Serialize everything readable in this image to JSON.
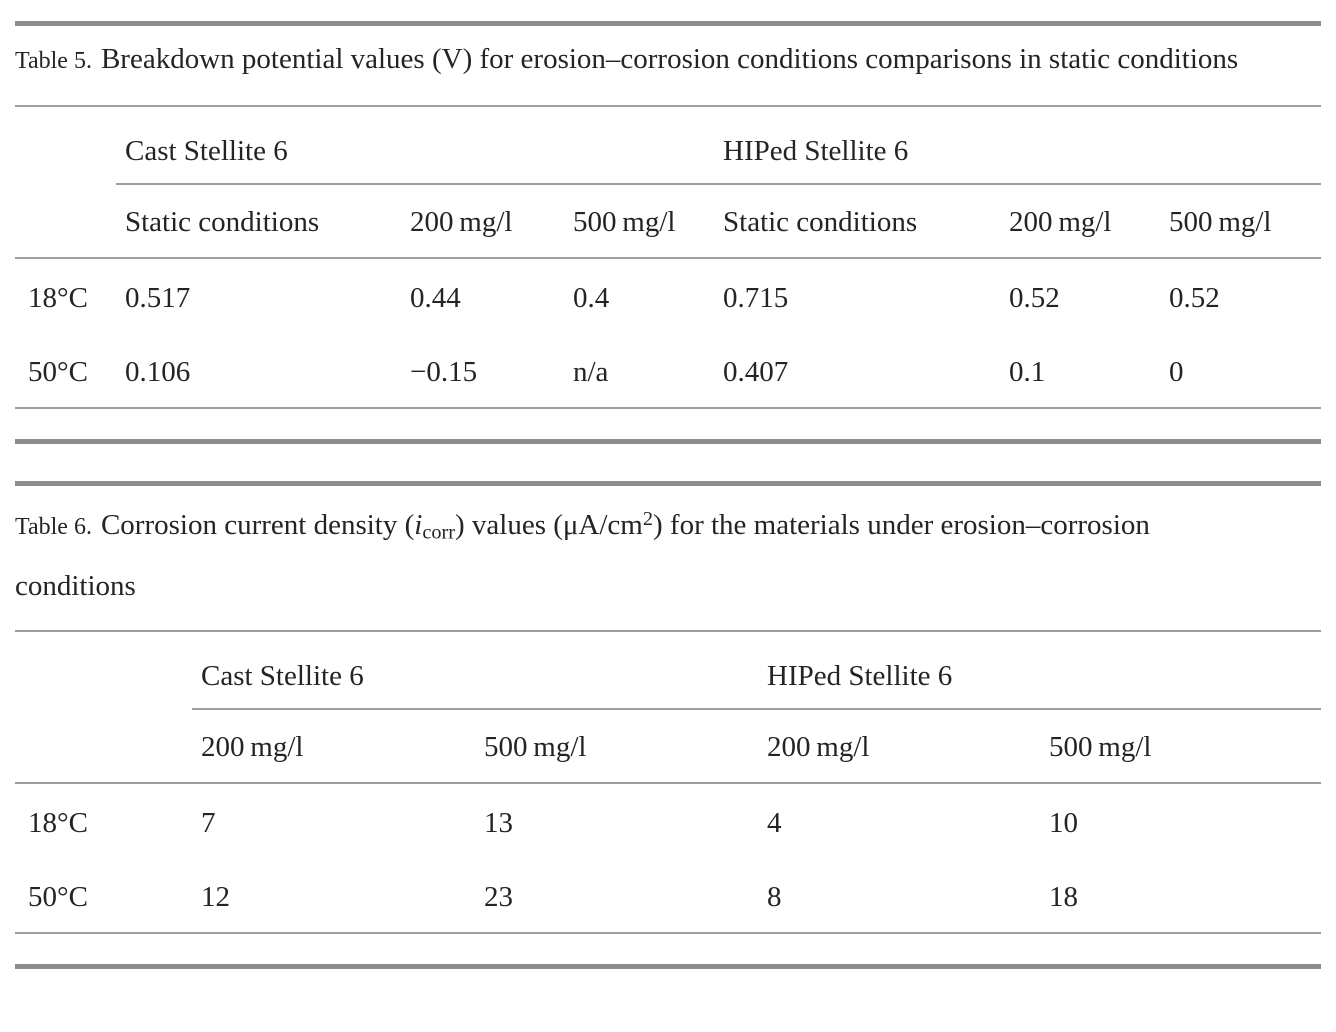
{
  "styles": {
    "text_color": "#242424",
    "rule_thick_color": "#8d8d8d",
    "rule_thin_color": "#9e9e9e"
  },
  "table5": {
    "caption_label": "Table 5.",
    "caption_text": "Breakdown potential values (V) for erosion–corrosion conditions comparisons in static conditions",
    "group_headers": [
      "Cast Stellite 6",
      "HIPed Stellite 6"
    ],
    "sub_headers": [
      "Static conditions",
      "200 mg/l",
      "500 mg/l",
      "Static conditions",
      "200 mg/l",
      "500 mg/l"
    ],
    "rows": [
      {
        "label": "18°C",
        "values": [
          "0.517",
          "0.44",
          "0.4",
          "0.715",
          "0.52",
          "0.52"
        ]
      },
      {
        "label": "50°C",
        "values": [
          "0.106",
          "−0.15",
          "n/a",
          "0.407",
          "0.1",
          "0"
        ]
      }
    ]
  },
  "table6": {
    "caption_label": "Table 6.",
    "caption_pre": "Corrosion current density (",
    "caption_var": "i",
    "caption_sub": "corr",
    "caption_mid": ") values (μA/cm",
    "caption_sup": "2",
    "caption_post": ") for the materials under erosion–corrosion conditions",
    "group_headers": [
      "Cast Stellite 6",
      "HIPed Stellite 6"
    ],
    "sub_headers": [
      "200 mg/l",
      "500 mg/l",
      "200 mg/l",
      "500 mg/l"
    ],
    "rows": [
      {
        "label": "18°C",
        "values": [
          "7",
          "13",
          "4",
          "10"
        ]
      },
      {
        "label": "50°C",
        "values": [
          "12",
          "23",
          "8",
          "18"
        ]
      }
    ]
  }
}
